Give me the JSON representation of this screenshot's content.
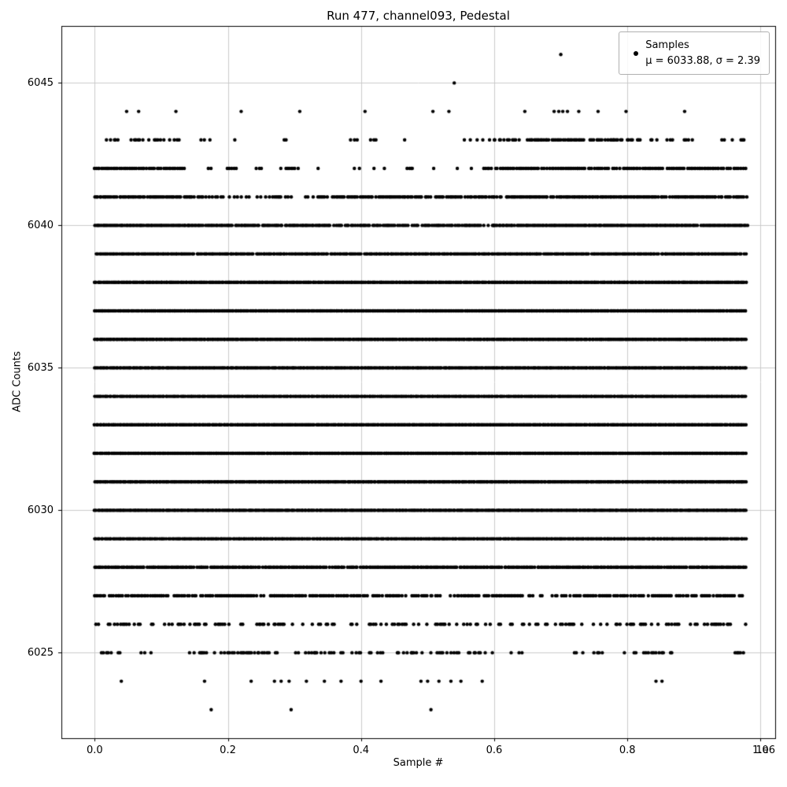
{
  "chart_data": {
    "type": "scatter",
    "title": "Run 477, channel093, Pedestal",
    "xlabel": "Sample #",
    "ylabel": "ADC Counts",
    "x_offset_label": "1e6",
    "grid": true,
    "marker_color": "#000000",
    "legend": {
      "position": "upper right",
      "label": "Samples",
      "stats": "μ = 6033.88, σ = 2.39",
      "mu": 6033.88,
      "sigma": 2.39
    },
    "xlim_e6": [
      -0.05,
      1.022
    ],
    "ylim": [
      6022,
      6047
    ],
    "xticks_e6": [
      0.0,
      0.2,
      0.4,
      0.6,
      0.8,
      1.0
    ],
    "x_tick_labels": [
      "0.0",
      "0.2",
      "0.4",
      "0.6",
      "0.8",
      "1.0"
    ],
    "yticks": [
      6025,
      6030,
      6035,
      6040,
      6045
    ],
    "y_tick_labels": [
      "6025",
      "6030",
      "6035",
      "6040",
      "6045"
    ],
    "x_data_range_e6": [
      0.0,
      0.98
    ],
    "bands": [
      {
        "adc": 6046,
        "points_e6": [
          0.7
        ]
      },
      {
        "adc": 6045,
        "points_e6": [
          0.54
        ]
      },
      {
        "adc": 6044,
        "points_e6": [
          0.048,
          0.066,
          0.122,
          0.22,
          0.308,
          0.406,
          0.508,
          0.532,
          0.646,
          0.69,
          0.697,
          0.703,
          0.71,
          0.727,
          0.756,
          0.798,
          0.886
        ]
      },
      {
        "adc": 6043,
        "segments": [
          [
            0.012,
            0.035,
            0.5
          ],
          [
            0.055,
            0.075,
            0.5
          ],
          [
            0.082,
            0.13,
            0.55
          ],
          [
            0.16,
            0.175,
            0.3
          ],
          [
            0.195,
            0.215,
            0.25
          ],
          [
            0.28,
            0.292,
            0.3
          ],
          [
            0.385,
            0.395,
            0.25
          ],
          [
            0.415,
            0.43,
            0.2
          ],
          [
            0.455,
            0.465,
            0.25
          ],
          [
            0.555,
            0.565,
            0.3
          ],
          [
            0.575,
            0.6,
            0.45
          ],
          [
            0.6,
            0.64,
            0.55
          ],
          [
            0.65,
            0.78,
            0.9
          ],
          [
            0.78,
            0.82,
            0.6
          ],
          [
            0.835,
            0.87,
            0.5
          ],
          [
            0.885,
            0.925,
            0.45
          ],
          [
            0.935,
            0.96,
            0.4
          ],
          [
            0.968,
            0.98,
            0.5
          ]
        ]
      },
      {
        "adc": 6042,
        "segments": [
          [
            0.0,
            0.135,
            0.85
          ],
          [
            0.165,
            0.175,
            0.4
          ],
          [
            0.2,
            0.215,
            0.5
          ],
          [
            0.235,
            0.25,
            0.4
          ],
          [
            0.28,
            0.31,
            0.5
          ],
          [
            0.33,
            0.345,
            0.4
          ],
          [
            0.365,
            0.372,
            0.35
          ],
          [
            0.39,
            0.42,
            0.5
          ],
          [
            0.435,
            0.45,
            0.4
          ],
          [
            0.47,
            0.48,
            0.3
          ],
          [
            0.5,
            0.51,
            0.35
          ],
          [
            0.53,
            0.545,
            0.4
          ],
          [
            0.56,
            0.566,
            0.3
          ],
          [
            0.585,
            0.98,
            0.85
          ]
        ]
      },
      {
        "adc": 6041,
        "segments": [
          [
            0.0,
            0.15,
            0.97
          ],
          [
            0.155,
            0.25,
            0.45
          ],
          [
            0.255,
            0.3,
            0.6
          ],
          [
            0.31,
            0.345,
            0.4
          ],
          [
            0.35,
            0.62,
            0.8
          ],
          [
            0.62,
            0.98,
            0.96
          ]
        ]
      },
      {
        "adc": 6040,
        "segments": [
          [
            0.0,
            0.14,
            1.0
          ],
          [
            0.14,
            0.6,
            0.9
          ],
          [
            0.6,
            0.98,
            0.99
          ]
        ]
      },
      {
        "adc": 6039,
        "segments": [
          [
            0.0,
            0.98,
            0.97
          ]
        ]
      },
      {
        "adc": 6038,
        "segments": [
          [
            0.0,
            0.98,
            1.0
          ]
        ]
      },
      {
        "adc": 6037,
        "segments": [
          [
            0.0,
            0.98,
            1.0
          ]
        ]
      },
      {
        "adc": 6036,
        "segments": [
          [
            0.0,
            0.98,
            1.0
          ]
        ]
      },
      {
        "adc": 6035,
        "segments": [
          [
            0.0,
            0.98,
            1.0
          ]
        ]
      },
      {
        "adc": 6034,
        "segments": [
          [
            0.0,
            0.98,
            1.0
          ]
        ]
      },
      {
        "adc": 6033,
        "segments": [
          [
            0.0,
            0.98,
            1.0
          ]
        ]
      },
      {
        "adc": 6032,
        "segments": [
          [
            0.0,
            0.98,
            1.0
          ]
        ]
      },
      {
        "adc": 6031,
        "segments": [
          [
            0.0,
            0.98,
            1.0
          ]
        ]
      },
      {
        "adc": 6030,
        "segments": [
          [
            0.0,
            0.98,
            1.0
          ]
        ]
      },
      {
        "adc": 6029,
        "segments": [
          [
            0.0,
            0.98,
            0.99
          ]
        ]
      },
      {
        "adc": 6028,
        "segments": [
          [
            0.0,
            0.98,
            0.95
          ]
        ]
      },
      {
        "adc": 6027,
        "segments": [
          [
            0.0,
            0.1,
            0.85
          ],
          [
            0.1,
            0.42,
            0.75
          ],
          [
            0.42,
            0.54,
            0.6
          ],
          [
            0.54,
            0.64,
            0.7
          ],
          [
            0.64,
            0.72,
            0.5
          ],
          [
            0.72,
            0.98,
            0.8
          ]
        ]
      },
      {
        "adc": 6026,
        "segments": [
          [
            0.0,
            0.05,
            0.55
          ],
          [
            0.05,
            0.12,
            0.35
          ],
          [
            0.12,
            0.3,
            0.4
          ],
          [
            0.3,
            0.42,
            0.35
          ],
          [
            0.42,
            0.56,
            0.35
          ],
          [
            0.56,
            0.64,
            0.25
          ],
          [
            0.64,
            0.76,
            0.3
          ],
          [
            0.76,
            0.9,
            0.35
          ],
          [
            0.9,
            0.98,
            0.3
          ]
        ]
      },
      {
        "adc": 6025,
        "segments": [
          [
            0.01,
            0.04,
            0.3
          ],
          [
            0.07,
            0.095,
            0.3
          ],
          [
            0.13,
            0.18,
            0.35
          ],
          [
            0.19,
            0.34,
            0.4
          ],
          [
            0.34,
            0.47,
            0.35
          ],
          [
            0.47,
            0.6,
            0.4
          ],
          [
            0.62,
            0.65,
            0.15
          ],
          [
            0.72,
            0.77,
            0.2
          ],
          [
            0.79,
            0.87,
            0.25
          ],
          [
            0.95,
            0.98,
            0.25
          ]
        ]
      },
      {
        "adc": 6024,
        "points_e6": [
          0.04,
          0.165,
          0.235,
          0.27,
          0.28,
          0.292,
          0.318,
          0.345,
          0.37,
          0.4,
          0.43,
          0.49,
          0.5,
          0.517,
          0.535,
          0.55,
          0.582,
          0.843,
          0.852
        ]
      },
      {
        "adc": 6023,
        "points_e6": [
          0.175,
          0.295,
          0.505
        ]
      }
    ]
  }
}
